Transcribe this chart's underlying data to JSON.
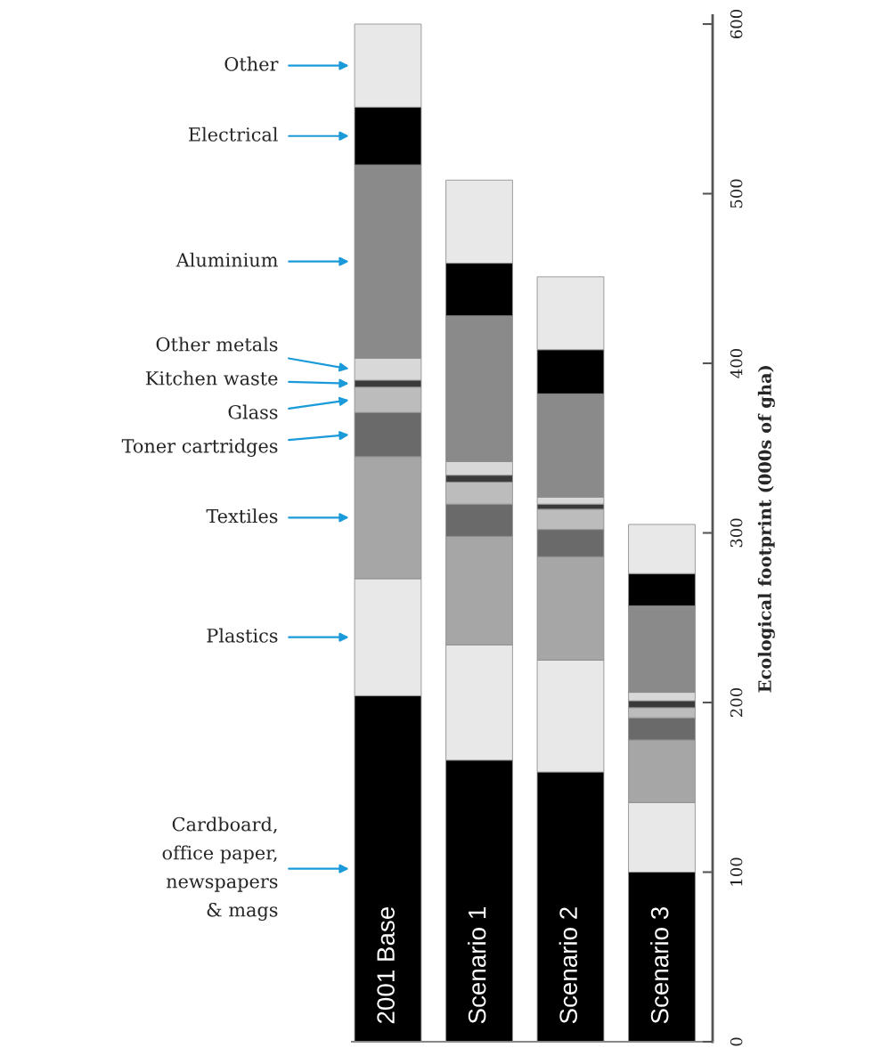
{
  "chart_data": {
    "type": "bar",
    "stacked": true,
    "categories": [
      "2001 Base",
      "Scenario 1",
      "Scenario 2",
      "Scenario 3"
    ],
    "ylabel": "Ecological footprint (000s of gha)",
    "ylim": [
      0,
      605
    ],
    "yticks": [
      0,
      100,
      200,
      300,
      400,
      500,
      600
    ],
    "grid": false,
    "legend": false,
    "series": [
      {
        "name": "Cardboard,\noffice paper,\nnewspapers\n& mags",
        "color": "#000000",
        "values": [
          204,
          166,
          159,
          100
        ]
      },
      {
        "name": "Plastics",
        "color": "#e8e8e8",
        "values": [
          69,
          68,
          66,
          41
        ]
      },
      {
        "name": "Textiles",
        "color": "#a6a6a6",
        "values": [
          72,
          64,
          61,
          37
        ]
      },
      {
        "name": "Toner cartridges",
        "color": "#6a6a6a",
        "values": [
          26,
          19,
          16,
          13
        ]
      },
      {
        "name": "Glass",
        "color": "#bcbcbc",
        "values": [
          15,
          13,
          12,
          6
        ]
      },
      {
        "name": "Kitchen waste",
        "color": "#3a3a3a",
        "values": [
          4,
          4,
          3,
          4
        ]
      },
      {
        "name": "Other metals",
        "color": "#d8d8d8",
        "values": [
          13,
          8,
          4,
          5
        ]
      },
      {
        "name": "Aluminium",
        "color": "#8a8a8a",
        "values": [
          114,
          86,
          61,
          51
        ]
      },
      {
        "name": "Electrical",
        "color": "#000000",
        "values": [
          34,
          31,
          26,
          19
        ]
      },
      {
        "name": "Other",
        "color": "#e8e8e8",
        "values": [
          49,
          49,
          43,
          29
        ]
      }
    ]
  }
}
